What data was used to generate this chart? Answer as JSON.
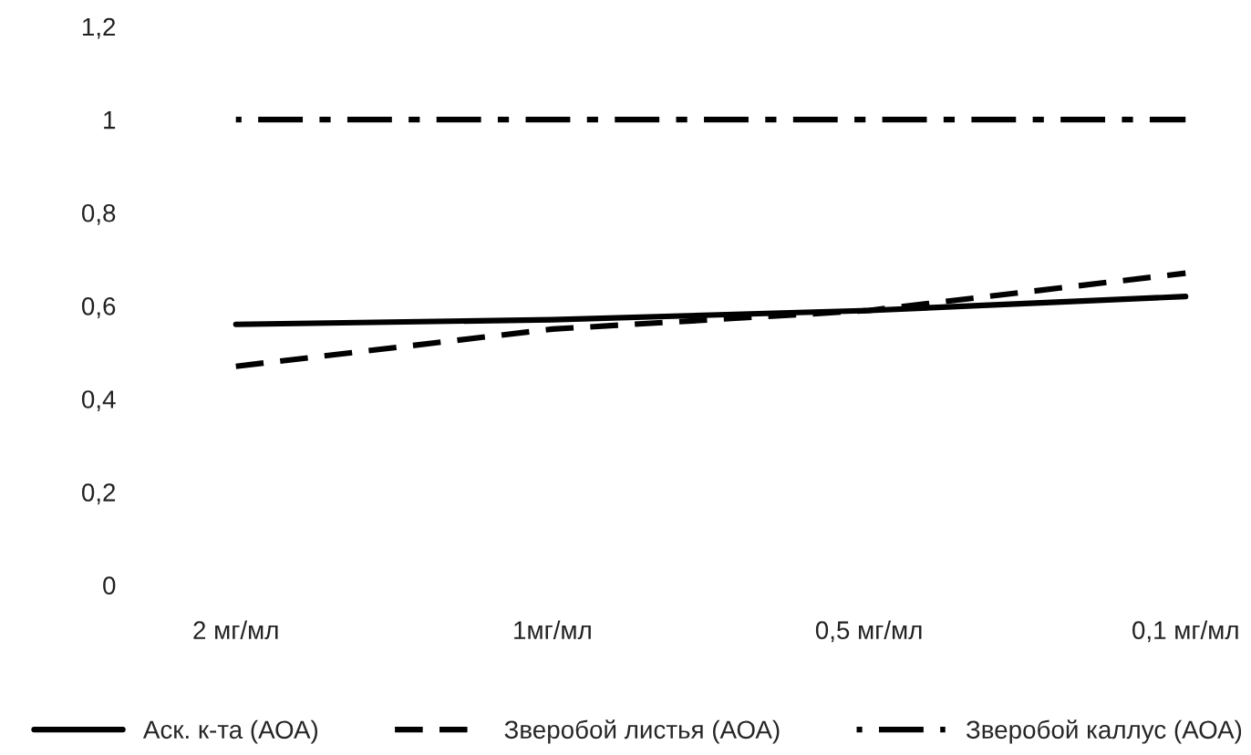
{
  "chart_data": {
    "type": "line",
    "categories": [
      "2 мг/мл",
      "1мг/мл",
      "0,5 мг/мл",
      "0,1 мг/мл"
    ],
    "series": [
      {
        "name": "Аск. к-та (АОА)",
        "color": "#000000",
        "line_style": "solid",
        "values": [
          0.56,
          0.57,
          0.59,
          0.62
        ]
      },
      {
        "name": "Зверобой листья (АОА)",
        "color": "#000000",
        "line_style": "dashed",
        "values": [
          0.47,
          0.55,
          0.59,
          0.67
        ]
      },
      {
        "name": "Зверобой каллус (АОА)",
        "color": "#000000",
        "line_style": "dashdot",
        "values": [
          1,
          1,
          1,
          1
        ]
      }
    ],
    "ylim": [
      0,
      1.2
    ],
    "yticks": [
      {
        "value": 0,
        "label": "0"
      },
      {
        "value": 0.2,
        "label": "0,2"
      },
      {
        "value": 0.4,
        "label": "0,4"
      },
      {
        "value": 0.6,
        "label": "0,6"
      },
      {
        "value": 0.8,
        "label": "0,8"
      },
      {
        "value": 1,
        "label": "1"
      },
      {
        "value": 1.2,
        "label": "1,2"
      }
    ],
    "grid": false,
    "legend": "bottom",
    "marker": "none"
  }
}
